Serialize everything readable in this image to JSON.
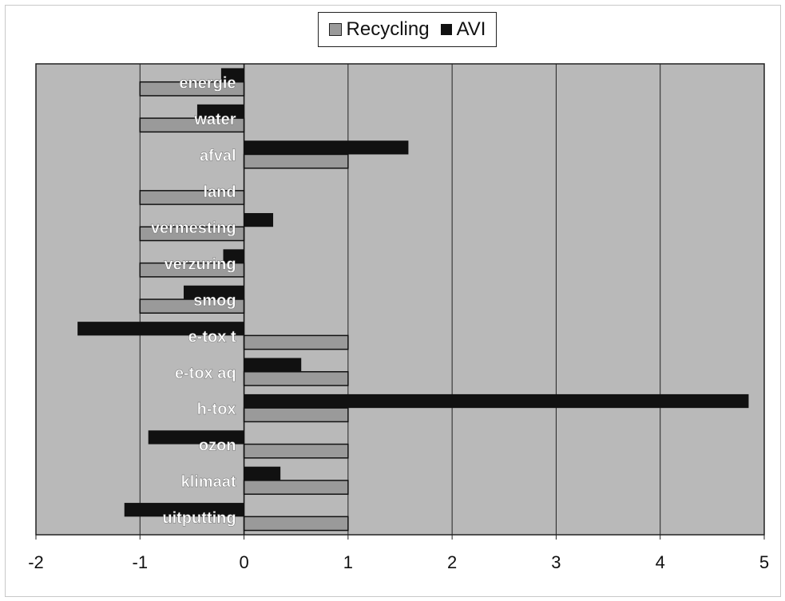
{
  "chart_data": {
    "type": "bar",
    "orientation": "horizontal",
    "categories": [
      "energie",
      "water",
      "afval",
      "land",
      "vermesting",
      "verzuring",
      "smog",
      "e-tox t",
      "e-tox aq",
      "h-tox",
      "ozon",
      "klimaat",
      "uitputting"
    ],
    "series": [
      {
        "name": "Recycling",
        "values": [
          -1,
          -1,
          1,
          -1,
          -1,
          -1,
          -1,
          1,
          1,
          1,
          1,
          1,
          1
        ]
      },
      {
        "name": "AVI",
        "values": [
          -0.22,
          -0.45,
          1.58,
          0,
          0.28,
          -0.2,
          -0.58,
          -1.6,
          0.55,
          4.85,
          -0.92,
          0.35,
          -1.15
        ]
      }
    ],
    "xlim": [
      -2,
      5
    ],
    "xticks": [
      "-2",
      "-1",
      "0",
      "1",
      "2",
      "3",
      "4",
      "5"
    ],
    "grid": true,
    "legend_position": "top",
    "colors": {
      "recycling": "#9a9a9a",
      "avi": "#111111",
      "plot_background": "#b9b9b9",
      "gridline": "#222222"
    }
  }
}
